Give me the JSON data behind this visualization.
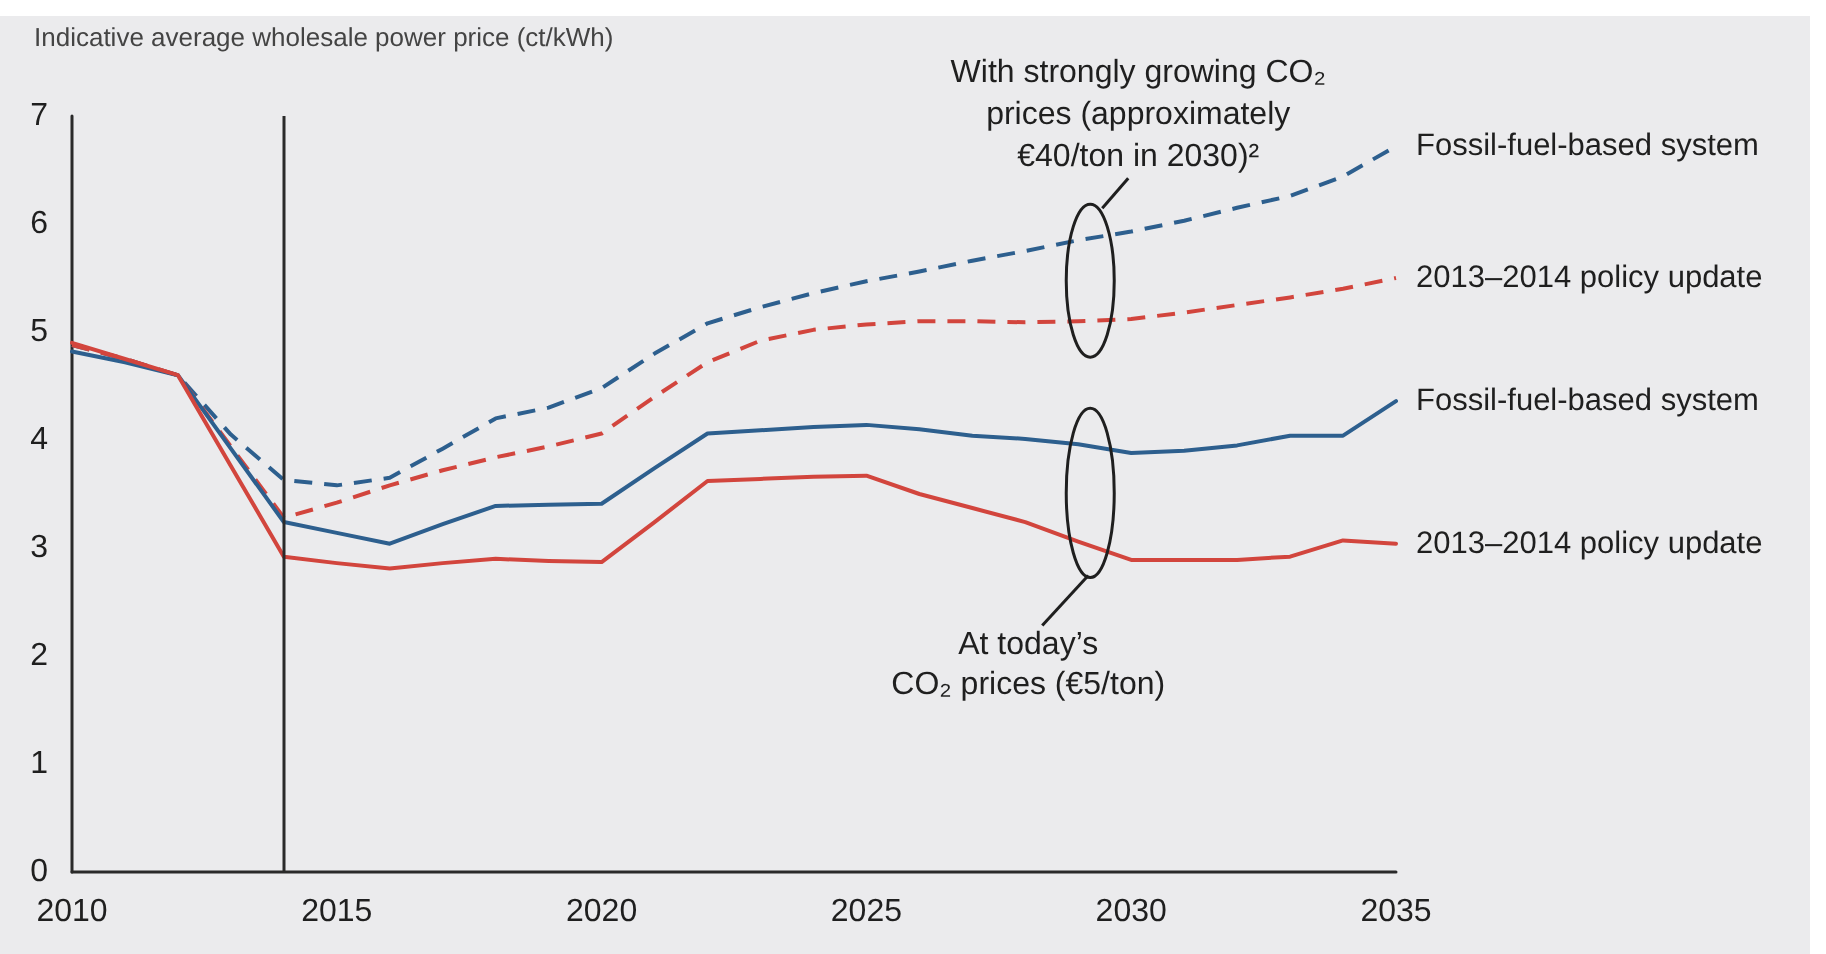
{
  "chart_data": {
    "type": "line",
    "ylabel": "Indicative average wholesale power price (ct/kWh)",
    "x": [
      2010,
      2011,
      2012,
      2013,
      2014,
      2015,
      2016,
      2017,
      2018,
      2019,
      2020,
      2021,
      2022,
      2023,
      2024,
      2025,
      2026,
      2027,
      2028,
      2029,
      2030,
      2031,
      2032,
      2033,
      2034,
      2035
    ],
    "series": [
      {
        "name": "Fossil-fuel-based system",
        "color": "#2d5f8e",
        "line_style": "dashed",
        "values": [
          4.88,
          4.75,
          4.6,
          4.05,
          3.63,
          3.58,
          3.65,
          3.92,
          4.2,
          4.3,
          4.48,
          4.8,
          5.08,
          5.23,
          5.36,
          5.47,
          5.56,
          5.66,
          5.75,
          5.85,
          5.93,
          6.03,
          6.15,
          6.26,
          6.44,
          6.72
        ]
      },
      {
        "name": "2013–2014 policy update",
        "color": "#d2453d",
        "line_style": "dashed",
        "values": [
          4.88,
          4.75,
          4.6,
          3.94,
          3.28,
          3.42,
          3.58,
          3.72,
          3.84,
          3.94,
          4.06,
          4.4,
          4.72,
          4.92,
          5.02,
          5.07,
          5.1,
          5.1,
          5.09,
          5.1,
          5.12,
          5.18,
          5.25,
          5.32,
          5.4,
          5.5
        ]
      },
      {
        "name": "Fossil-fuel-based system",
        "color": "#2d5f8e",
        "line_style": "solid",
        "values": [
          4.82,
          4.72,
          4.6,
          3.92,
          3.24,
          3.14,
          3.04,
          3.22,
          3.39,
          3.4,
          3.41,
          3.74,
          4.06,
          4.09,
          4.12,
          4.14,
          4.1,
          4.04,
          4.01,
          3.96,
          3.88,
          3.9,
          3.95,
          4.04,
          4.04,
          4.36
        ]
      },
      {
        "name": "2013–2014 policy update",
        "color": "#d2453d",
        "line_style": "solid",
        "values": [
          4.9,
          4.75,
          4.6,
          3.76,
          2.92,
          2.86,
          2.81,
          2.86,
          2.9,
          2.88,
          2.87,
          3.24,
          3.62,
          3.64,
          3.66,
          3.67,
          3.5,
          3.37,
          3.24,
          3.06,
          2.89,
          2.89,
          2.89,
          2.92,
          3.07,
          3.04
        ]
      }
    ],
    "xlim": [
      2010,
      2035
    ],
    "xticks": [
      2010,
      2015,
      2020,
      2025,
      2030,
      2035
    ],
    "ylim": [
      0,
      7
    ],
    "yticks": [
      0,
      1,
      2,
      3,
      4,
      5,
      6,
      7
    ],
    "ref_lines": [
      {
        "axis": "x",
        "value": 2014
      }
    ],
    "annotations": [
      "With strongly growing CO₂\nprices (approximately\n€40/ton in 2030)²",
      "At today’s\nCO₂ prices (€5/ton)"
    ]
  }
}
